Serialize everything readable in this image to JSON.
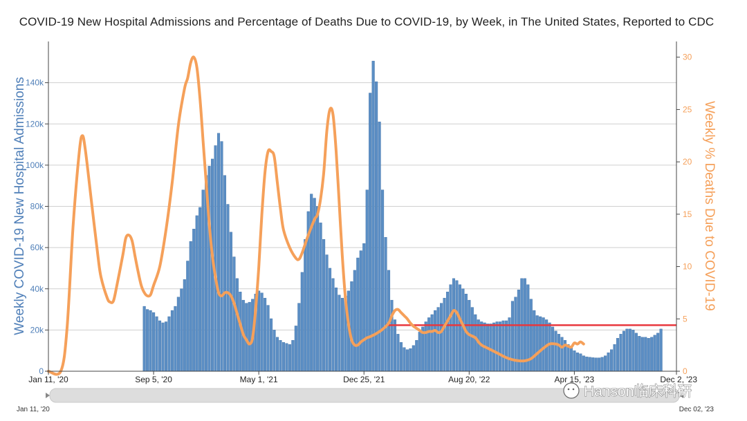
{
  "colors": {
    "bar": "#5b8ec4",
    "bar_edge": "#3d6fa6",
    "line": "#f5a05a",
    "reference": "#e8373d",
    "left_axis": "#4f7fb8",
    "right_axis": "#f5a05a",
    "grid": "#cfcfcf"
  },
  "range_selector": {
    "start_label": "Jan 11, '20",
    "end_label": "Dec 02, '23"
  },
  "watermark": "Hanson临床科研",
  "chart_data": {
    "type": "bar+line",
    "title": "COVID-19 New Hospital Admissions and Percentage of Deaths Due to COVID-19, by Week, in The United States, Reported to CDC",
    "x_ticks": [
      {
        "week": 0,
        "label": "Jan 11, '20"
      },
      {
        "week": 34,
        "label": "Sep 5, '20"
      },
      {
        "week": 68,
        "label": "May 1, '21"
      },
      {
        "week": 102,
        "label": "Dec 25, '21"
      },
      {
        "week": 136,
        "label": "Aug 20, '22"
      },
      {
        "week": 170,
        "label": "Apr 15, '23"
      },
      {
        "week": 203,
        "label": "Dec 2, '23"
      }
    ],
    "x_range": [
      0,
      203
    ],
    "y_left": {
      "label": "Weekly COVID-19 New Hospital Admissions",
      "range": [
        0,
        160000
      ],
      "ticks": [
        {
          "v": 0,
          "t": "0"
        },
        {
          "v": 20000,
          "t": "20k"
        },
        {
          "v": 40000,
          "t": "40k"
        },
        {
          "v": 60000,
          "t": "60k"
        },
        {
          "v": 80000,
          "t": "80k"
        },
        {
          "v": 100000,
          "t": "100k"
        },
        {
          "v": 120000,
          "t": "120k"
        },
        {
          "v": 140000,
          "t": "140k"
        }
      ]
    },
    "y_right": {
      "label": "Weekly % Deaths Due to COVID-19",
      "range": [
        0,
        31.5
      ],
      "ticks": [
        {
          "v": 0,
          "t": "0"
        },
        {
          "v": 5,
          "t": "5"
        },
        {
          "v": 10,
          "t": "10"
        },
        {
          "v": 15,
          "t": "15"
        },
        {
          "v": 20,
          "t": "20"
        },
        {
          "v": 25,
          "t": "25"
        },
        {
          "v": 30,
          "t": "30"
        }
      ]
    },
    "admissions": {
      "name": "Weekly COVID-19 New Hospital Admissions",
      "start_week": 31,
      "values": [
        31500,
        30000,
        29500,
        28500,
        26500,
        24500,
        23500,
        24000,
        26500,
        29500,
        31500,
        36000,
        40000,
        44500,
        53500,
        63000,
        69000,
        75500,
        79500,
        88000,
        95000,
        99500,
        103000,
        109500,
        115500,
        111500,
        95000,
        81000,
        67500,
        55500,
        45000,
        38500,
        34500,
        33000,
        33500,
        35000,
        37500,
        39000,
        38000,
        35500,
        32000,
        25500,
        20000,
        16500,
        15000,
        14000,
        13500,
        13000,
        15000,
        22000,
        33000,
        48000,
        64000,
        77500,
        86000,
        84000,
        80000,
        72000,
        64000,
        56500,
        50000,
        45000,
        40500,
        37000,
        35500,
        36500,
        39000,
        43500,
        49000,
        55000,
        58500,
        62000,
        88000,
        135000,
        150500,
        140500,
        121000,
        88000,
        65000,
        49000,
        34500,
        25000,
        18000,
        14000,
        11500,
        10500,
        11000,
        12500,
        15000,
        19000,
        21500,
        24000,
        26000,
        27500,
        29500,
        31000,
        33000,
        35500,
        38500,
        42000,
        45000,
        44000,
        42000,
        40000,
        37500,
        34500,
        31000,
        27500,
        25000,
        24000,
        23500,
        23000,
        23000,
        23500,
        24000,
        24000,
        24500,
        24500,
        26000,
        34000,
        36000,
        39500,
        45000,
        45000,
        42000,
        35000,
        29500,
        27000,
        26500,
        26000,
        25000,
        23500,
        21500,
        19500,
        18000,
        16500,
        15000,
        13000,
        11500,
        10000,
        9000,
        8500,
        7500,
        7000,
        6800,
        6600,
        6500,
        6500,
        6800,
        7500,
        9000,
        10500,
        13000,
        16000,
        18000,
        19500,
        20500,
        20500,
        20000,
        18500,
        17000,
        16500,
        16500,
        16000,
        16500,
        17500,
        18500,
        20500
      ]
    },
    "death_pct": {
      "name": "Weekly % Deaths Due to COVID-19",
      "points": [
        [
          0,
          0
        ],
        [
          4,
          0
        ],
        [
          6,
          4
        ],
        [
          8,
          14
        ],
        [
          10,
          21
        ],
        [
          11,
          22.5
        ],
        [
          12,
          21
        ],
        [
          14,
          16
        ],
        [
          16,
          11
        ],
        [
          17,
          9
        ],
        [
          19,
          7
        ],
        [
          20,
          6.6
        ],
        [
          21,
          6.7
        ],
        [
          22,
          8
        ],
        [
          24,
          11
        ],
        [
          25,
          12.7
        ],
        [
          26,
          13
        ],
        [
          27,
          12.5
        ],
        [
          28,
          11
        ],
        [
          29,
          9.5
        ],
        [
          30,
          8.2
        ],
        [
          31,
          7.5
        ],
        [
          32,
          7.2
        ],
        [
          33,
          7.3
        ],
        [
          34,
          8.2
        ],
        [
          36,
          10
        ],
        [
          38,
          13.5
        ],
        [
          40,
          18
        ],
        [
          42,
          23.5
        ],
        [
          44,
          27
        ],
        [
          45,
          28
        ],
        [
          46,
          29.5
        ],
        [
          47,
          30
        ],
        [
          48,
          29
        ],
        [
          49,
          26
        ],
        [
          50,
          22
        ],
        [
          51,
          18
        ],
        [
          52,
          14
        ],
        [
          53,
          11
        ],
        [
          54,
          9
        ],
        [
          55,
          7.5
        ],
        [
          56,
          7.2
        ],
        [
          57,
          7.5
        ],
        [
          58,
          7.5
        ],
        [
          59,
          7.2
        ],
        [
          60,
          6.5
        ],
        [
          61,
          5.5
        ],
        [
          62,
          4.5
        ],
        [
          63,
          3.5
        ],
        [
          64,
          3
        ],
        [
          65,
          2.6
        ],
        [
          66,
          3.2
        ],
        [
          67,
          6
        ],
        [
          68,
          10
        ],
        [
          69,
          15
        ],
        [
          70,
          19
        ],
        [
          71,
          21
        ],
        [
          72,
          21
        ],
        [
          73,
          20.5
        ],
        [
          74,
          18
        ],
        [
          75,
          15.5
        ],
        [
          76,
          13.5
        ],
        [
          78,
          11.8
        ],
        [
          80,
          10.8
        ],
        [
          81,
          10.7
        ],
        [
          82,
          11.3
        ],
        [
          84,
          13
        ],
        [
          86,
          14.5
        ],
        [
          87,
          15
        ],
        [
          88,
          16.5
        ],
        [
          89,
          19
        ],
        [
          90,
          23
        ],
        [
          91,
          25
        ],
        [
          92,
          24.5
        ],
        [
          93,
          21
        ],
        [
          94,
          16
        ],
        [
          95,
          11
        ],
        [
          96,
          7
        ],
        [
          97,
          4.5
        ],
        [
          98,
          3
        ],
        [
          99,
          2.5
        ],
        [
          100,
          2.5
        ],
        [
          101,
          2.8
        ],
        [
          102,
          3
        ],
        [
          103,
          3.2
        ],
        [
          104,
          3.3
        ],
        [
          106,
          3.6
        ],
        [
          108,
          4
        ],
        [
          110,
          4.6
        ],
        [
          111,
          5.3
        ],
        [
          112,
          5.8
        ],
        [
          113,
          5.9
        ],
        [
          114,
          5.6
        ],
        [
          115,
          5.3
        ],
        [
          116,
          5
        ],
        [
          117,
          4.6
        ],
        [
          118,
          4.3
        ],
        [
          119,
          4.1
        ],
        [
          120,
          3.9
        ],
        [
          121,
          3.7
        ],
        [
          122,
          3.7
        ],
        [
          123,
          3.8
        ],
        [
          124,
          3.8
        ],
        [
          125,
          3.9
        ],
        [
          126,
          3.7
        ],
        [
          127,
          3.8
        ],
        [
          128,
          4.3
        ],
        [
          129,
          4.8
        ],
        [
          130,
          5.3
        ],
        [
          131,
          5.8
        ],
        [
          132,
          5.6
        ],
        [
          133,
          5
        ],
        [
          134,
          4.4
        ],
        [
          135,
          3.8
        ],
        [
          136,
          3.5
        ],
        [
          138,
          3.2
        ],
        [
          139,
          2.8
        ],
        [
          140,
          2.5
        ],
        [
          142,
          2.2
        ],
        [
          144,
          1.9
        ],
        [
          146,
          1.6
        ],
        [
          148,
          1.3
        ],
        [
          150,
          1.1
        ],
        [
          152,
          1
        ],
        [
          154,
          1
        ],
        [
          156,
          1.2
        ],
        [
          158,
          1.7
        ],
        [
          160,
          2.2
        ],
        [
          162,
          2.6
        ],
        [
          164,
          2.6
        ],
        [
          165,
          2.5
        ],
        [
          166,
          2.3
        ],
        [
          167,
          2.5
        ],
        [
          168,
          2.4
        ],
        [
          169,
          2.3
        ],
        [
          170,
          2.7
        ],
        [
          171,
          2.6
        ],
        [
          172,
          2.8
        ],
        [
          173,
          2.6
        ]
      ]
    },
    "reference_line": {
      "value_pct": 4.4,
      "from_week": 109,
      "to_week": 203
    },
    "legend": "none"
  }
}
